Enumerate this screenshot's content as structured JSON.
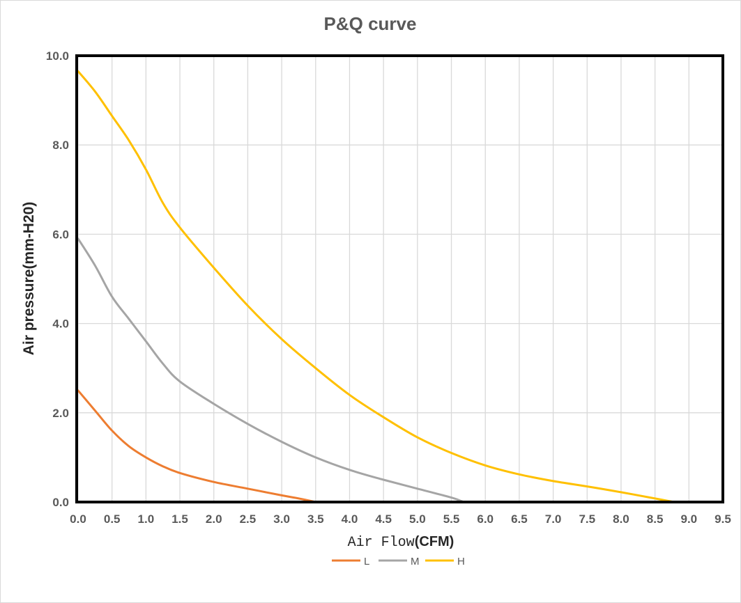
{
  "chart_data": {
    "type": "line",
    "title": "P&Q curve",
    "xlabel_prefix": "Air Flow",
    "xlabel_unit": "(CFM)",
    "ylabel": "Air pressure(mm-H20)",
    "xlim": [
      0,
      9.5
    ],
    "ylim": [
      0,
      10
    ],
    "x_ticks": [
      "0.0",
      "0.5",
      "1.0",
      "1.5",
      "2.0",
      "2.5",
      "3.0",
      "3.5",
      "4.0",
      "4.5",
      "5.0",
      "5.5",
      "6.0",
      "6.5",
      "7.0",
      "7.5",
      "8.0",
      "8.5",
      "9.0",
      "9.5"
    ],
    "y_ticks": [
      "0.0",
      "2.0",
      "4.0",
      "6.0",
      "8.0",
      "10.0"
    ],
    "grid": true,
    "legend_position": "bottom",
    "series": [
      {
        "name": "L",
        "color": "#ed7d31",
        "x": [
          0,
          0.25,
          0.5,
          0.75,
          1.0,
          1.25,
          1.5,
          2.0,
          2.5,
          3.0,
          3.25,
          3.5
        ],
        "y": [
          2.5,
          2.05,
          1.6,
          1.25,
          1.0,
          0.8,
          0.65,
          0.45,
          0.3,
          0.15,
          0.08,
          0.0
        ]
      },
      {
        "name": "M",
        "color": "#a5a5a5",
        "x": [
          0,
          0.25,
          0.5,
          0.75,
          1.0,
          1.25,
          1.5,
          2.0,
          2.5,
          3.0,
          3.5,
          4.0,
          4.5,
          5.0,
          5.5,
          5.68
        ],
        "y": [
          5.9,
          5.3,
          4.6,
          4.1,
          3.6,
          3.1,
          2.7,
          2.2,
          1.75,
          1.35,
          1.0,
          0.72,
          0.5,
          0.3,
          0.1,
          0.0
        ]
      },
      {
        "name": "H",
        "color": "#ffc000",
        "x": [
          0,
          0.25,
          0.5,
          0.75,
          1.0,
          1.25,
          1.5,
          2.0,
          2.5,
          3.0,
          3.5,
          4.0,
          4.5,
          5.0,
          5.5,
          6.0,
          6.5,
          7.0,
          7.5,
          8.0,
          8.5,
          8.78
        ],
        "y": [
          9.65,
          9.2,
          8.65,
          8.1,
          7.45,
          6.7,
          6.15,
          5.25,
          4.4,
          3.65,
          3.0,
          2.4,
          1.9,
          1.45,
          1.1,
          0.82,
          0.62,
          0.47,
          0.35,
          0.22,
          0.08,
          0.0
        ]
      }
    ]
  }
}
